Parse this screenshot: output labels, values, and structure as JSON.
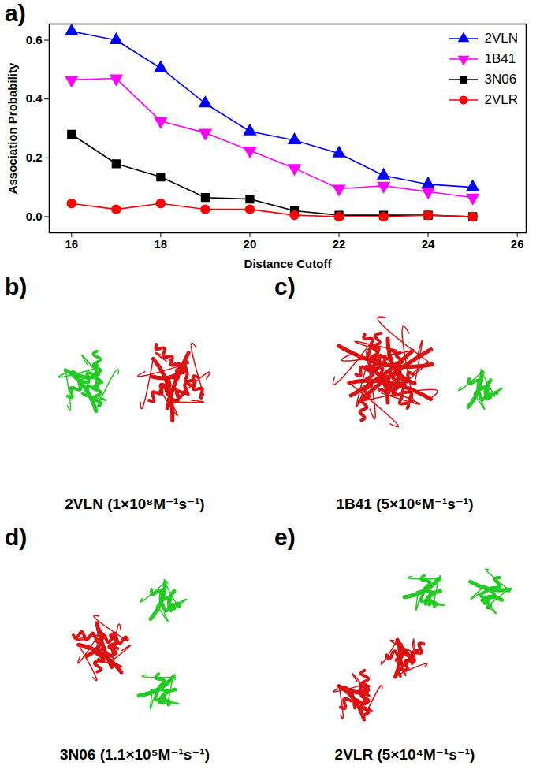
{
  "chart_data": {
    "type": "line",
    "x_label": "Distance Cutoff",
    "y_label": "Association Probability",
    "x": [
      16,
      17,
      18,
      19,
      20,
      21,
      22,
      23,
      24,
      25
    ],
    "series": [
      {
        "name": "2VLN",
        "color": "#0000ff",
        "marker": "triangle-up",
        "values": [
          0.63,
          0.6,
          0.505,
          0.385,
          0.29,
          0.26,
          0.215,
          0.14,
          0.11,
          0.1
        ]
      },
      {
        "name": "1B41",
        "color": "#ff00ff",
        "marker": "triangle-down",
        "values": [
          0.465,
          0.47,
          0.325,
          0.285,
          0.225,
          0.165,
          0.095,
          0.105,
          0.085,
          0.065
        ]
      },
      {
        "name": "3N06",
        "color": "#000000",
        "marker": "square",
        "values": [
          0.28,
          0.18,
          0.135,
          0.065,
          0.06,
          0.02,
          0.005,
          0.005,
          0.005,
          0.0
        ]
      },
      {
        "name": "2VLR",
        "color": "#ff0000",
        "marker": "circle",
        "values": [
          0.045,
          0.025,
          0.045,
          0.025,
          0.025,
          0.005,
          0.0,
          0.0,
          0.005,
          0.0
        ]
      }
    ],
    "xlim": [
      15.5,
      26.2
    ],
    "xticks": [
      16,
      18,
      20,
      22,
      24,
      26
    ],
    "ylim": [
      -0.055,
      0.655
    ],
    "yticks": [
      {
        "value": 0,
        "label": "0.0"
      },
      {
        "value": 0.2,
        "label": "0.2"
      },
      {
        "value": 0.4,
        "label": "0.4"
      },
      {
        "value": 0.6,
        "label": "0.6"
      }
    ],
    "grid": false,
    "legend": "top-right"
  },
  "chart_label": "a)",
  "structures": [
    {
      "label": "b)",
      "caption": "2VLN (1×10⁸M⁻¹s⁻¹)"
    },
    {
      "label": "c)",
      "caption": "1B41 (5×10⁶M⁻¹s⁻¹)"
    },
    {
      "label": "d)",
      "caption": "3N06 (1.1×10⁵M⁻¹s⁻¹)"
    },
    {
      "label": "e)",
      "caption": "2VLR (5×10⁴M⁻¹s⁻¹)"
    }
  ]
}
